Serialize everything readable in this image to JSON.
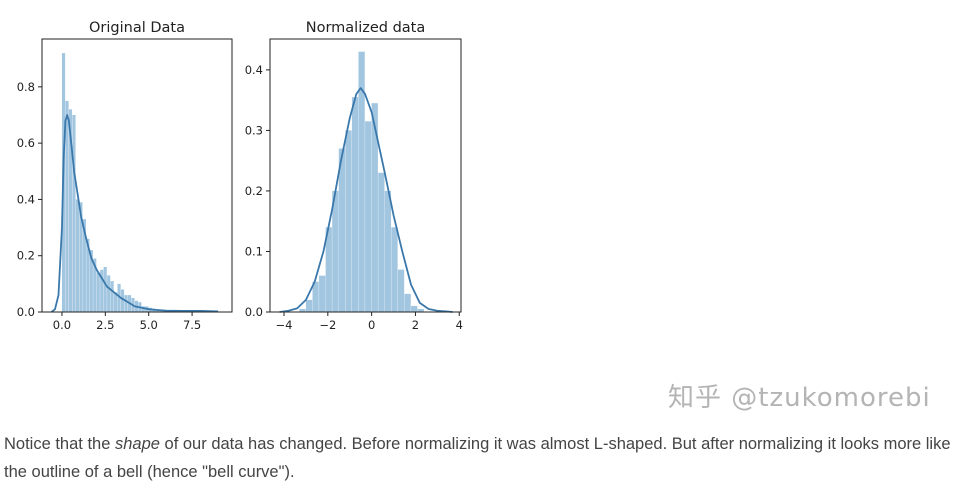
{
  "chart_data": [
    {
      "type": "histogram",
      "title": "Original Data",
      "xlabel": "",
      "ylabel": "",
      "xlim": [
        -1.15,
        9.8
      ],
      "ylim": [
        0,
        0.97
      ],
      "xticks": [
        0.0,
        2.5,
        5.0,
        7.5
      ],
      "xtick_labels": [
        "0.0",
        "2.5",
        "5.0",
        "7.5"
      ],
      "yticks": [
        0.0,
        0.2,
        0.4,
        0.6,
        0.8
      ],
      "ytick_labels": [
        "0.0",
        "0.2",
        "0.4",
        "0.6",
        "0.8"
      ],
      "grid": false,
      "bin_start": 0,
      "bin_width": 0.2,
      "bar_values": [
        0.92,
        0.75,
        0.72,
        0.7,
        0.4,
        0.39,
        0.33,
        0.26,
        0.22,
        0.19,
        0.14,
        0.15,
        0.16,
        0.13,
        0.11,
        0.07,
        0.1,
        0.08,
        0.06,
        0.06,
        0.05,
        0.04,
        0.035,
        0.02,
        0.02,
        0.015,
        0.012,
        0.01,
        0.008,
        0.006,
        0.006,
        0.005,
        0.004,
        0.004,
        0.003,
        0.003,
        0.003,
        0.003,
        0.002,
        0.002,
        0.002,
        0.002,
        0.002,
        0.002,
        0.002
      ],
      "kde": {
        "x": [
          -0.6,
          -0.4,
          -0.2,
          0,
          0.1,
          0.2,
          0.3,
          0.4,
          0.5,
          0.7,
          0.9,
          1.1,
          1.4,
          1.7,
          2.0,
          2.3,
          2.6,
          3.0,
          3.4,
          3.8,
          4.2,
          4.6,
          5.0,
          5.5,
          6,
          7,
          8,
          9
        ],
        "y": [
          0,
          0.01,
          0.06,
          0.3,
          0.55,
          0.68,
          0.7,
          0.68,
          0.62,
          0.5,
          0.42,
          0.34,
          0.26,
          0.19,
          0.15,
          0.12,
          0.09,
          0.07,
          0.05,
          0.035,
          0.02,
          0.015,
          0.01,
          0.007,
          0.005,
          0.004,
          0.004,
          0.002
        ]
      }
    },
    {
      "type": "histogram",
      "title": "Normalized data",
      "xlabel": "",
      "ylabel": "",
      "xlim": [
        -4.64,
        4.08
      ],
      "ylim": [
        0,
        0.451
      ],
      "xticks": [
        -4,
        -2,
        0,
        2,
        4
      ],
      "xtick_labels": [
        "−4",
        "−2",
        "0",
        "2",
        "4"
      ],
      "yticks": [
        0.0,
        0.1,
        0.2,
        0.3,
        0.4
      ],
      "ytick_labels": [
        "0.0",
        "0.1",
        "0.2",
        "0.3",
        "0.4"
      ],
      "grid": false,
      "bin_start": -3.3,
      "bin_width": 0.3,
      "bar_values": [
        0.005,
        0.02,
        0.05,
        0.06,
        0.14,
        0.2,
        0.27,
        0.3,
        0.355,
        0.43,
        0.315,
        0.345,
        0.23,
        0.2,
        0.14,
        0.07,
        0.03,
        0.01,
        0.005
      ],
      "kde": {
        "x": [
          -4.2,
          -3.8,
          -3.4,
          -3.0,
          -2.6,
          -2.2,
          -1.8,
          -1.4,
          -1.0,
          -0.7,
          -0.5,
          -0.3,
          0,
          0.3,
          0.6,
          1.0,
          1.4,
          1.8,
          2.2,
          2.6,
          3.0,
          3.4,
          3.7
        ],
        "y": [
          0.0,
          0.002,
          0.006,
          0.02,
          0.05,
          0.1,
          0.17,
          0.25,
          0.32,
          0.36,
          0.37,
          0.36,
          0.33,
          0.28,
          0.23,
          0.16,
          0.1,
          0.045,
          0.015,
          0.005,
          0.002,
          0.001,
          0.0
        ]
      }
    }
  ],
  "colors": {
    "bar": "#a3c6e0",
    "kde": "#3a78ab",
    "axis": "#222222"
  },
  "paragraph": {
    "before_italic": "Notice that the ",
    "italic": "shape",
    "after_italic": " of our data has changed. Before normalizing it was almost L-shaped. But after normalizing it looks more like the outline of a bell (hence \"bell curve\")."
  },
  "watermark": "知乎 @tzukomorebi"
}
